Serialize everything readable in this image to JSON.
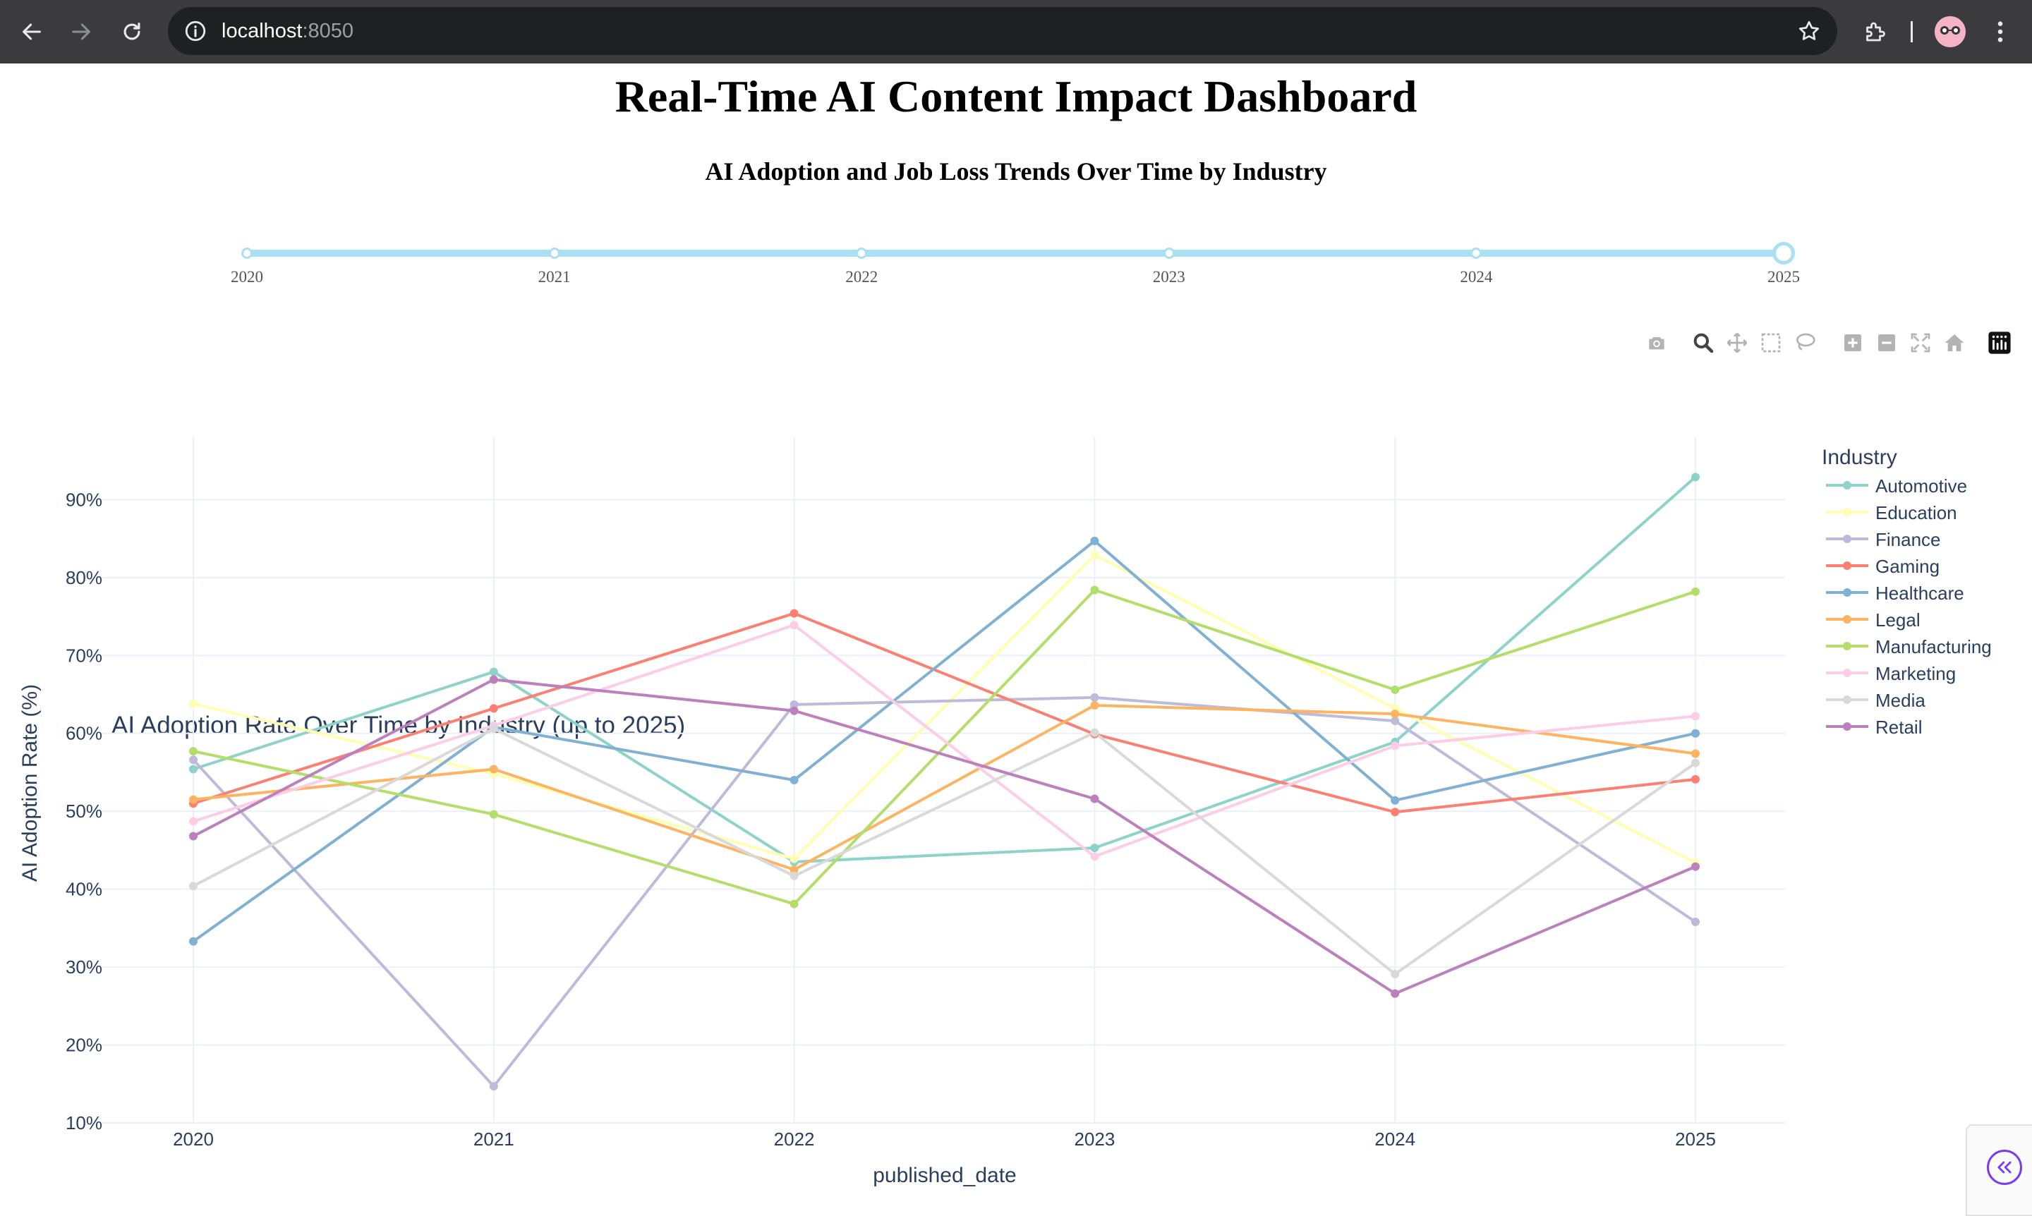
{
  "browser": {
    "url_host": "localhost",
    "url_port": ":8050"
  },
  "page": {
    "title": "Real-Time AI Content Impact Dashboard",
    "subtitle": "AI Adoption and Job Loss Trends Over Time by Industry"
  },
  "year_slider": {
    "marks": [
      "2020",
      "2021",
      "2022",
      "2023",
      "2024",
      "2025"
    ],
    "selected": "2025"
  },
  "modebar": {
    "buttons": [
      "camera-icon",
      "zoom-icon",
      "pan-icon",
      "box-select-icon",
      "lasso-select-icon",
      "zoom-in-icon",
      "zoom-out-icon",
      "autoscale-icon",
      "reset-axes-icon",
      "plotly-logo-icon"
    ]
  },
  "chart_data": {
    "type": "line",
    "title": "AI Adoption Rate Over Time by Industry (up to 2025)",
    "xlabel": "published_date",
    "ylabel": "AI Adoption Rate (%)",
    "x": [
      "2020",
      "2021",
      "2022",
      "2023",
      "2024",
      "2025"
    ],
    "ylim": [
      10,
      98
    ],
    "yticks": [
      "10%",
      "20%",
      "30%",
      "40%",
      "50%",
      "60%",
      "70%",
      "80%",
      "90%"
    ],
    "legend_title": "Industry",
    "legend_position": "right",
    "grid": true,
    "series": [
      {
        "name": "Automotive",
        "color": "#8dd3c7",
        "values": [
          55.4,
          67.9,
          43.5,
          45.3,
          58.9,
          92.9
        ]
      },
      {
        "name": "Education",
        "color": "#ffffb3",
        "values": [
          63.8,
          54.8,
          43.9,
          82.9,
          63.2,
          43.4
        ]
      },
      {
        "name": "Finance",
        "color": "#bebada",
        "values": [
          56.6,
          14.7,
          63.7,
          64.6,
          61.6,
          35.8
        ]
      },
      {
        "name": "Gaming",
        "color": "#fb8072",
        "values": [
          51.0,
          63.2,
          75.4,
          59.9,
          49.9,
          54.1
        ]
      },
      {
        "name": "Healthcare",
        "color": "#80b1d3",
        "values": [
          33.3,
          60.8,
          54.0,
          84.7,
          51.4,
          60.0
        ]
      },
      {
        "name": "Legal",
        "color": "#fdb462",
        "values": [
          51.5,
          55.4,
          42.5,
          63.6,
          62.5,
          57.4
        ]
      },
      {
        "name": "Manufacturing",
        "color": "#b3de69",
        "values": [
          57.7,
          49.6,
          38.1,
          78.4,
          65.6,
          78.2
        ]
      },
      {
        "name": "Marketing",
        "color": "#fccde5",
        "values": [
          48.7,
          61.0,
          73.9,
          44.2,
          58.4,
          62.2
        ]
      },
      {
        "name": "Media",
        "color": "#d9d9d9",
        "values": [
          40.4,
          60.6,
          41.7,
          60.1,
          29.1,
          56.2
        ]
      },
      {
        "name": "Retail",
        "color": "#bc80bd",
        "values": [
          46.8,
          66.9,
          62.9,
          51.6,
          26.6,
          42.9
        ]
      }
    ]
  }
}
